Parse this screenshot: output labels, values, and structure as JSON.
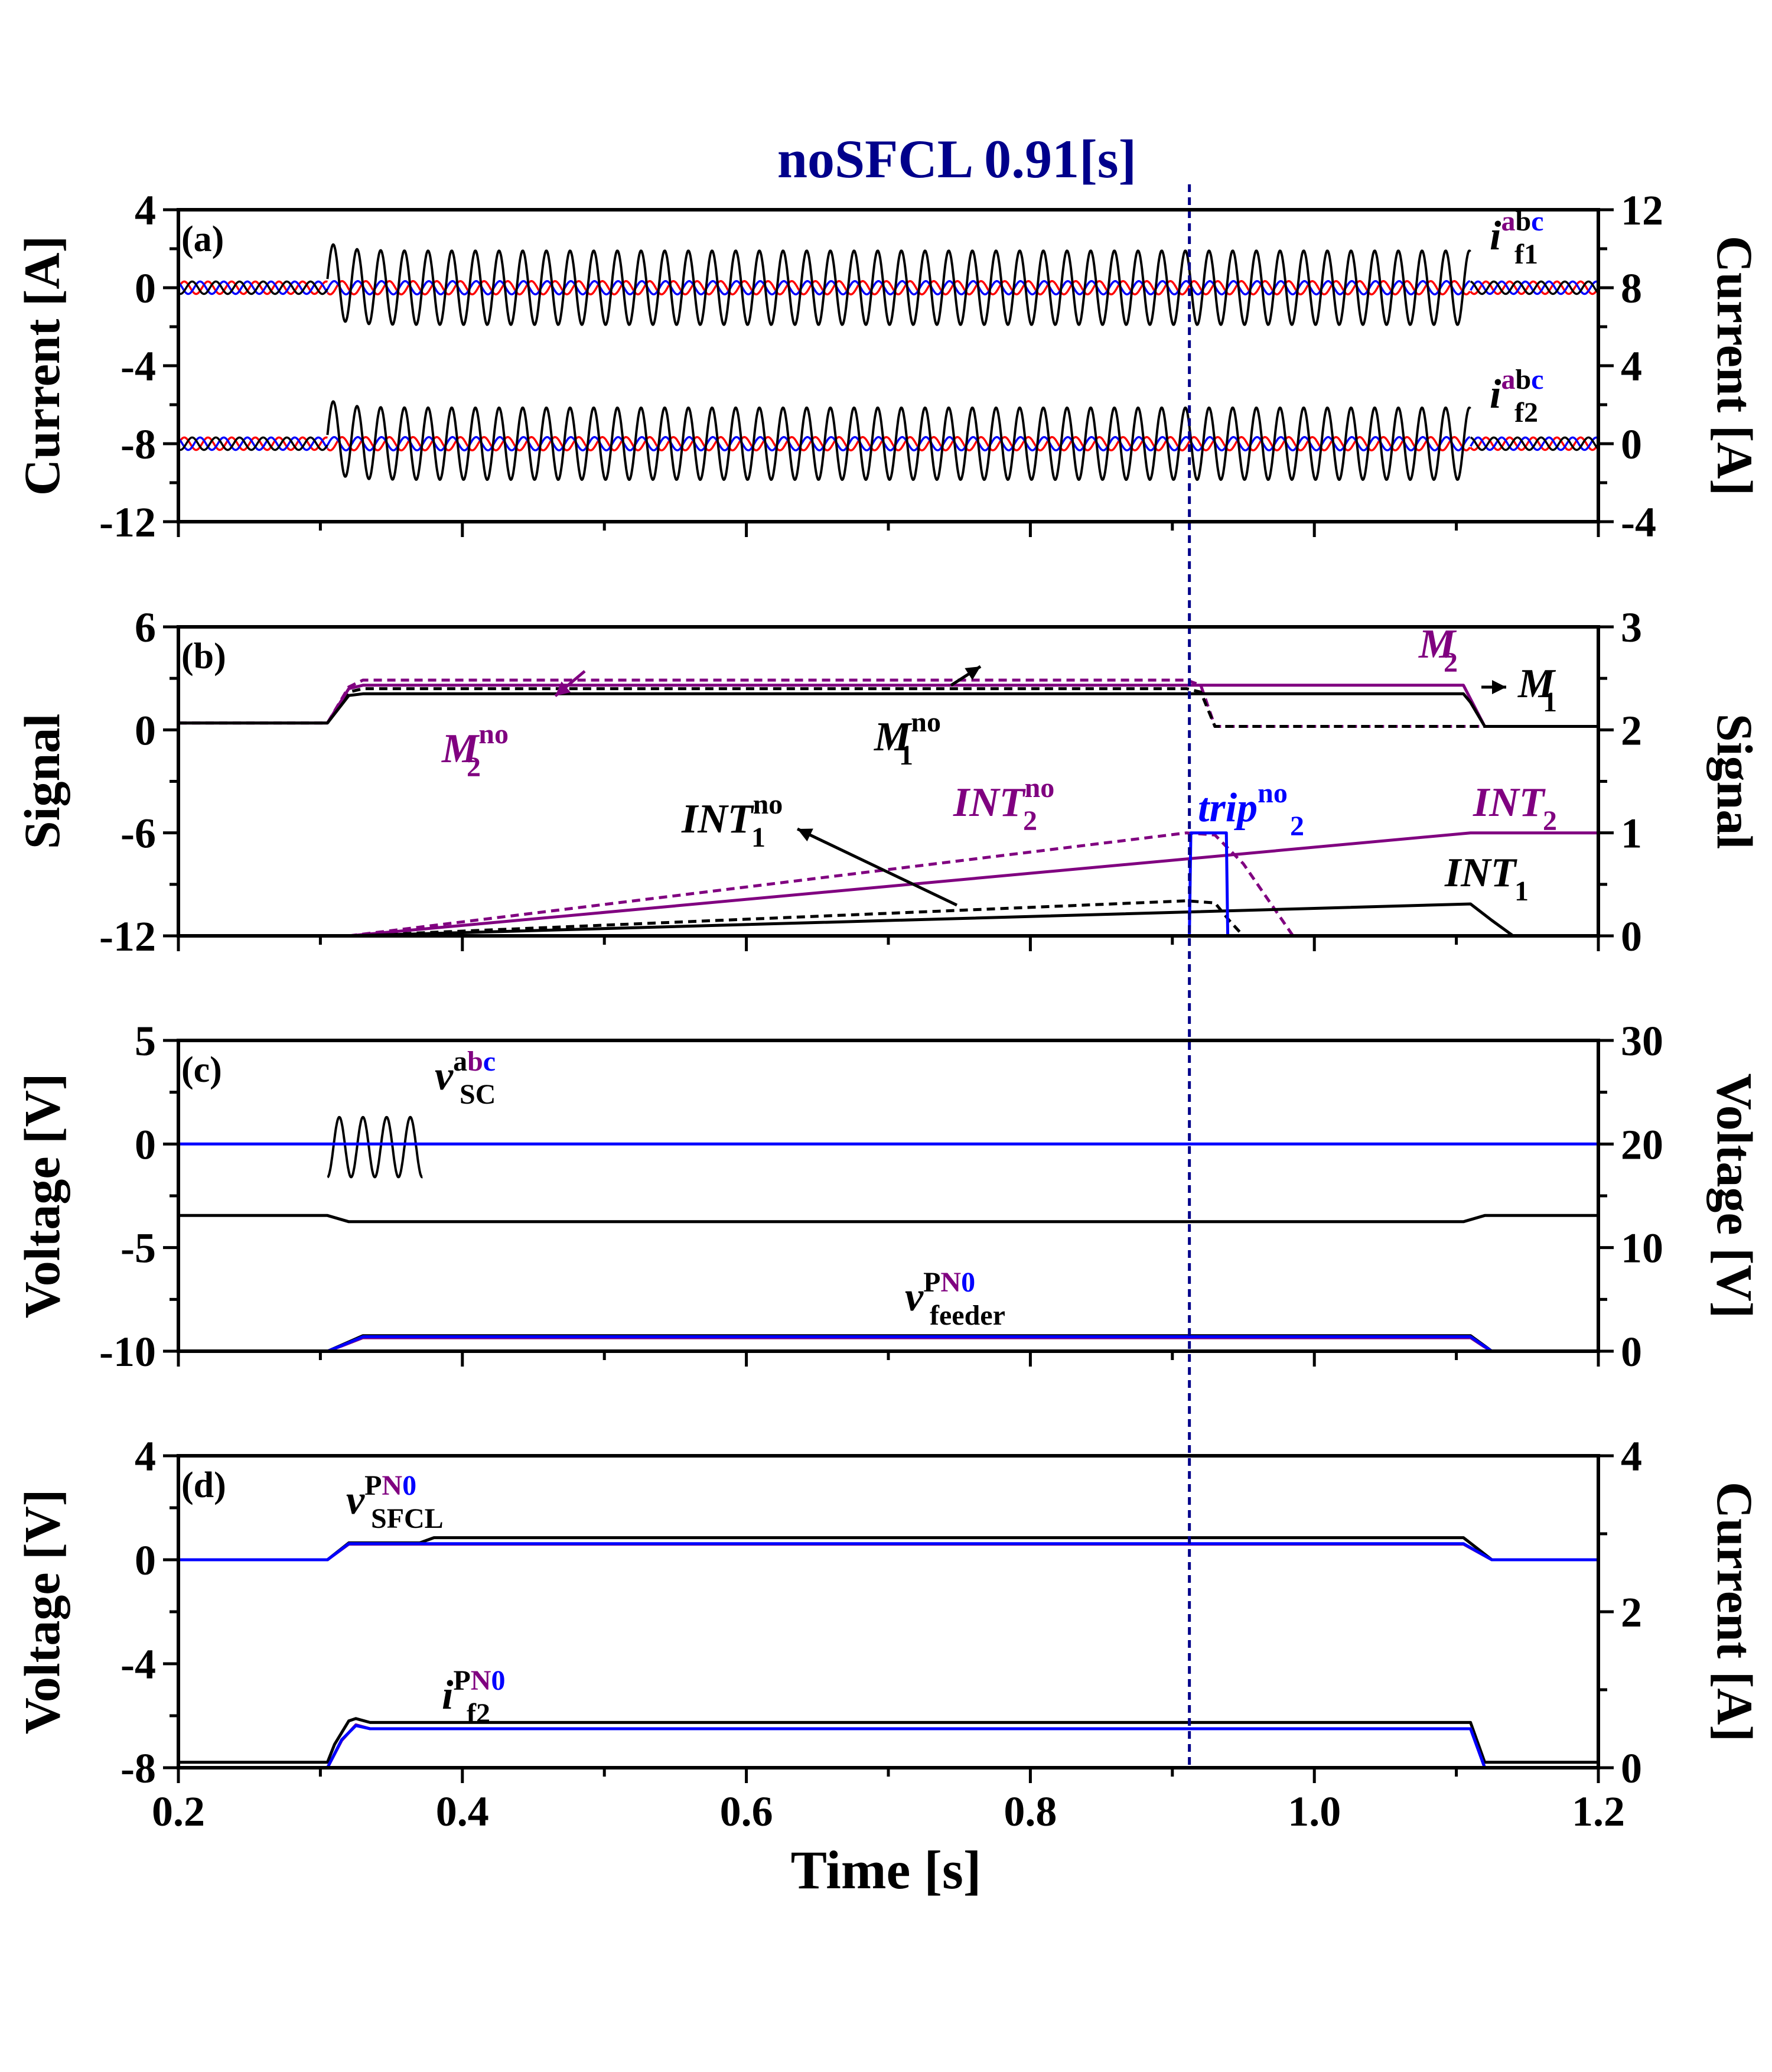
{
  "figure": {
    "title": "noSFCL 0.91[s]",
    "xlabel": "Time [s]",
    "xticks": [
      "0.2",
      "0.4",
      "0.6",
      "0.8",
      "1.0",
      "1.2"
    ]
  },
  "colors": {
    "black": "#000000",
    "purple": "#800080",
    "blue": "#0000ff",
    "red": "#ff0000",
    "navy": "#00008b"
  },
  "panels": [
    {
      "label": "(a)",
      "ylabel_left": "Current [A]",
      "ylabel_right": "Current [A]",
      "yticks_left": [
        "4",
        "0",
        "-4",
        "-8",
        "-12"
      ],
      "yticks_right": [
        "12",
        "8",
        "4",
        "0",
        "-4"
      ],
      "annotations": [
        {
          "sym": "i",
          "sup_a": "a",
          "sup_b": "b",
          "sup_c": "c",
          "sub": "f1"
        },
        {
          "sym": "i",
          "sup_a": "a",
          "sup_b": "b",
          "sup_c": "c",
          "sub": "f2"
        }
      ]
    },
    {
      "label": "(b)",
      "ylabel_left": "Signal",
      "ylabel_right": "Signal",
      "yticks_left": [
        "6",
        "0",
        "-6",
        "-12"
      ],
      "yticks_right": [
        "3",
        "2",
        "1",
        "0"
      ],
      "annotations": [
        {
          "sym": "M",
          "sup": "no",
          "sub": "2"
        },
        {
          "sym": "M",
          "sup": "no",
          "sub": "1"
        },
        {
          "sym": "M",
          "sub": "2"
        },
        {
          "sym": "M",
          "sub": "1"
        },
        {
          "sym": "INT",
          "sup": "no",
          "sub": "1"
        },
        {
          "sym": "INT",
          "sup": "no",
          "sub": "2"
        },
        {
          "sym": "trip",
          "sup": "no",
          "sub": "2"
        },
        {
          "sym": "INT",
          "sub": "2"
        },
        {
          "sym": "INT",
          "sub": "1"
        }
      ]
    },
    {
      "label": "(c)",
      "ylabel_left": "Voltage [V]",
      "ylabel_right": "Voltage [V]",
      "yticks_left": [
        "5",
        "0",
        "-5",
        "-10"
      ],
      "yticks_right": [
        "30",
        "20",
        "10",
        "0"
      ],
      "annotations": [
        {
          "sym": "v",
          "sup_a": "a",
          "sup_b": "b",
          "sup_c": "c",
          "sub": "SC"
        },
        {
          "sym": "v",
          "sup_a": "P",
          "sup_b": "N",
          "sup_c": "0",
          "sub": "feeder"
        }
      ]
    },
    {
      "label": "(d)",
      "ylabel_left": "Voltage [V]",
      "ylabel_right": "Current [A]",
      "yticks_left": [
        "4",
        "0",
        "-4",
        "-8"
      ],
      "yticks_right": [
        "4",
        "2",
        "0"
      ],
      "annotations": [
        {
          "sym": "v",
          "sup_a": "P",
          "sup_b": "N",
          "sup_c": "0",
          "sub": "SFCL"
        },
        {
          "sym": "i",
          "sup_a": "P",
          "sup_b": "N",
          "sup_c": "0",
          "sub": "f2"
        }
      ]
    }
  ],
  "chart_data": [
    {
      "panel": "(a)",
      "type": "line",
      "xlim": [
        0.2,
        1.2
      ],
      "ylim_left": [
        -12,
        4
      ],
      "ylim_right": [
        -4,
        12
      ],
      "fault_window": [
        0.305,
        1.11
      ],
      "series": [
        {
          "name": "i_f1^abc",
          "axis": "left",
          "baseline": 0,
          "fault_amplitude": 1.9,
          "fault_peak": 2.3,
          "frequency_hz": 60,
          "phases": [
            "black",
            "red",
            "blue"
          ]
        },
        {
          "name": "i_f2^abc",
          "axis": "left",
          "baseline": -8,
          "fault_amplitude": 1.85,
          "fault_peak": 2.4,
          "frequency_hz": 60,
          "phases": [
            "black",
            "red",
            "blue"
          ]
        }
      ]
    },
    {
      "panel": "(b)",
      "type": "line",
      "xlim": [
        0.2,
        1.2
      ],
      "ylim_left": [
        -12,
        6
      ],
      "ylim_right": [
        0,
        3
      ],
      "series": [
        {
          "name": "M_2^no",
          "axis": "left",
          "style": "dashed",
          "color": "purple",
          "x": [
            0.2,
            0.305,
            0.32,
            0.33,
            0.91,
            0.92,
            0.93,
            1.2
          ],
          "y": [
            0.4,
            0.4,
            2.5,
            2.9,
            2.9,
            2.6,
            0.2,
            0.2
          ]
        },
        {
          "name": "M_1^no",
          "axis": "left",
          "style": "dashed",
          "color": "black",
          "x": [
            0.2,
            0.305,
            0.32,
            0.33,
            0.91,
            0.92,
            0.93,
            1.2
          ],
          "y": [
            0.4,
            0.4,
            2.2,
            2.4,
            2.4,
            2.2,
            0.2,
            0.2
          ]
        },
        {
          "name": "M_2",
          "axis": "left",
          "style": "solid",
          "color": "purple",
          "x": [
            0.2,
            0.305,
            0.32,
            0.33,
            1.105,
            1.11,
            1.12,
            1.2
          ],
          "y": [
            0.4,
            0.4,
            2.4,
            2.6,
            2.6,
            1.8,
            0.2,
            0.2
          ]
        },
        {
          "name": "M_1",
          "axis": "left",
          "style": "solid",
          "color": "black",
          "x": [
            0.2,
            0.305,
            0.32,
            0.33,
            1.105,
            1.11,
            1.12,
            1.2
          ],
          "y": [
            0.4,
            0.4,
            2.0,
            2.1,
            2.1,
            1.6,
            0.2,
            0.2
          ]
        },
        {
          "name": "INT_2^no",
          "axis": "right",
          "style": "dashed",
          "color": "purple",
          "x": [
            0.32,
            0.91,
            0.93,
            0.95,
            0.97,
            0.985
          ],
          "y": [
            0,
            1.0,
            0.98,
            0.7,
            0.3,
            0
          ]
        },
        {
          "name": "INT_1^no",
          "axis": "right",
          "style": "dashed",
          "color": "black",
          "x": [
            0.32,
            0.91,
            0.93,
            0.94,
            0.95
          ],
          "y": [
            0,
            0.34,
            0.32,
            0.15,
            0
          ]
        },
        {
          "name": "INT_2",
          "axis": "right",
          "style": "solid",
          "color": "purple",
          "x": [
            0.32,
            1.11,
            1.2
          ],
          "y": [
            0,
            1.0,
            1.0
          ]
        },
        {
          "name": "INT_1",
          "axis": "right",
          "style": "solid",
          "color": "black",
          "x": [
            0.32,
            1.11,
            1.125,
            1.14
          ],
          "y": [
            0,
            0.31,
            0.15,
            0
          ]
        },
        {
          "name": "trip_2^no",
          "axis": "right",
          "style": "solid",
          "color": "blue",
          "x": [
            0.912,
            0.913,
            0.938,
            0.939
          ],
          "y": [
            0,
            1.0,
            1.0,
            0
          ]
        }
      ]
    },
    {
      "panel": "(c)",
      "type": "line",
      "xlim": [
        0.2,
        1.2
      ],
      "ylim_left": [
        -10,
        5
      ],
      "ylim_right": [
        0,
        30
      ],
      "series": [
        {
          "name": "v_SC^abc (burst)",
          "axis": "left",
          "color": "black",
          "x_range": [
            0.305,
            0.372
          ],
          "center": -0.15,
          "amplitude": 1.45,
          "frequency_hz": 60
        },
        {
          "name": "v_SC^abc (blue)",
          "axis": "left",
          "color": "blue",
          "x": [
            0.2,
            1.2
          ],
          "y": [
            0,
            0
          ]
        },
        {
          "name": "v_SC^abc (black)",
          "axis": "left",
          "color": "black",
          "x": [
            0.2,
            0.305,
            0.32,
            1.105,
            1.12,
            1.2
          ],
          "y": [
            -3.45,
            -3.45,
            -3.75,
            -3.75,
            -3.45,
            -3.45
          ]
        },
        {
          "name": "v_feeder^PN0 (P)",
          "axis": "right",
          "color": "black",
          "x": [
            0.305,
            0.315,
            0.33,
            1.11,
            1.12,
            1.125
          ],
          "y": [
            0,
            0.6,
            1.5,
            1.5,
            0.5,
            0
          ]
        },
        {
          "name": "v_feeder^PN0 (N)",
          "axis": "right",
          "color": "purple",
          "x": [
            0.305,
            0.315,
            0.33,
            1.11,
            1.12,
            1.125
          ],
          "y": [
            0,
            0.5,
            1.3,
            1.3,
            0.4,
            0
          ]
        },
        {
          "name": "v_feeder^PN0 (0)",
          "axis": "right",
          "color": "blue",
          "x": [
            0.305,
            0.315,
            0.33,
            1.11,
            1.12,
            1.125
          ],
          "y": [
            0,
            0.55,
            1.4,
            1.4,
            0.45,
            0
          ]
        }
      ]
    },
    {
      "panel": "(d)",
      "type": "line",
      "xlim": [
        0.2,
        1.2
      ],
      "ylim_left": [
        -8,
        4
      ],
      "ylim_right": [
        0,
        4
      ],
      "series": [
        {
          "name": "v_SFCL^PN0 (P)",
          "axis": "left",
          "color": "black",
          "x": [
            0.2,
            0.305,
            0.32,
            0.37,
            0.38,
            1.105,
            1.125,
            1.2
          ],
          "y": [
            0,
            0,
            0.65,
            0.65,
            0.85,
            0.85,
            0,
            0
          ]
        },
        {
          "name": "v_SFCL^PN0 (N)",
          "axis": "left",
          "color": "purple",
          "x": [
            0.2,
            0.305,
            0.32,
            1.105,
            1.125,
            1.2
          ],
          "y": [
            0,
            0,
            0.6,
            0.6,
            0,
            0
          ]
        },
        {
          "name": "v_SFCL^PN0 (0)",
          "axis": "left",
          "color": "blue",
          "x": [
            0.2,
            0.305,
            0.32,
            1.105,
            1.125,
            1.2
          ],
          "y": [
            0,
            0,
            0.62,
            0.62,
            0,
            0
          ]
        },
        {
          "name": "i_f2^PN0 (P)",
          "axis": "right",
          "color": "black",
          "x": [
            0.2,
            0.305,
            0.31,
            0.32,
            0.325,
            0.335,
            1.11,
            1.12,
            1.2
          ],
          "y": [
            0.07,
            0.07,
            0.3,
            0.6,
            0.63,
            0.58,
            0.58,
            0.07,
            0.07
          ]
        },
        {
          "name": "i_f2^PN0 (N)",
          "axis": "right",
          "color": "purple",
          "x": [
            0.305,
            0.315,
            0.325,
            0.335,
            1.11,
            1.115,
            1.12
          ],
          "y": [
            0,
            0.35,
            0.55,
            0.5,
            0.5,
            0.25,
            0
          ]
        },
        {
          "name": "i_f2^PN0 (0)",
          "axis": "right",
          "color": "blue",
          "x": [
            0.305,
            0.315,
            0.325,
            0.335,
            1.11,
            1.115,
            1.12
          ],
          "y": [
            0,
            0.36,
            0.54,
            0.5,
            0.5,
            0.25,
            0
          ]
        }
      ]
    }
  ],
  "marker": {
    "time": 0.912
  }
}
